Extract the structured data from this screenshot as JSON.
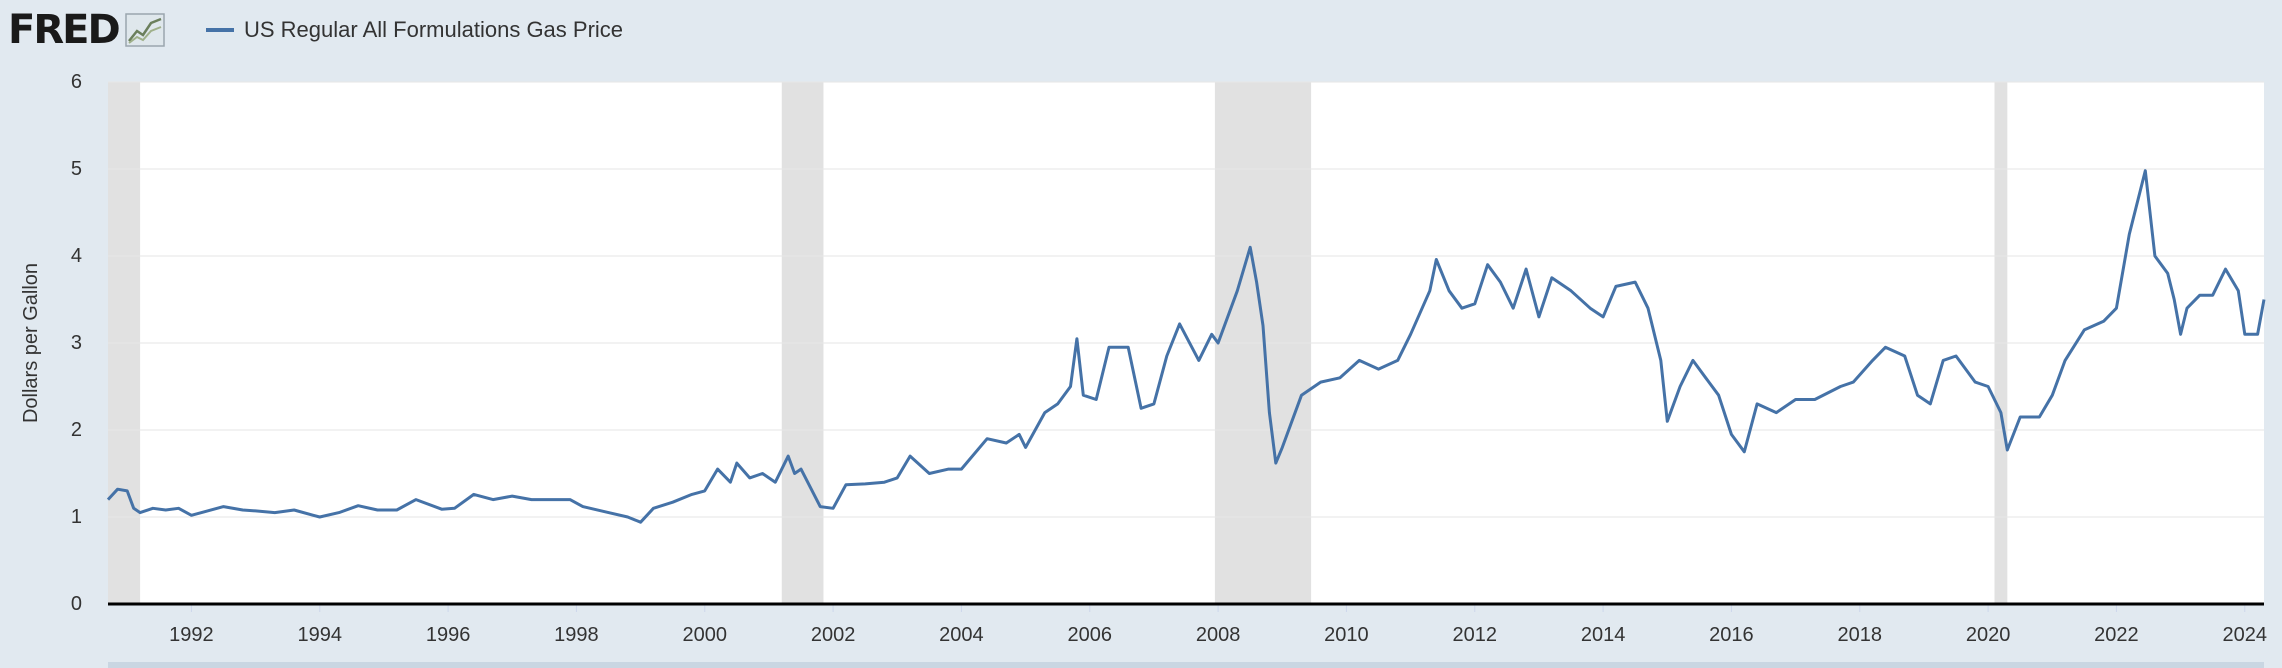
{
  "header": {
    "logo": "FRED",
    "logo_icon": "chart-line-icon",
    "legend_label": "US Regular All Formulations Gas Price",
    "series_color": "#4572a7"
  },
  "chart_data": {
    "type": "line",
    "ylabel": "Dollars per Gallon",
    "xlabel": "",
    "ylim": [
      0,
      6
    ],
    "yticks": [
      0,
      1,
      2,
      3,
      4,
      5,
      6
    ],
    "xlim": [
      1990.7,
      2024.3
    ],
    "xticks": [
      "1992",
      "1994",
      "1996",
      "1998",
      "2000",
      "2002",
      "2004",
      "2006",
      "2008",
      "2010",
      "2012",
      "2014",
      "2016",
      "2018",
      "2020",
      "2022",
      "2024"
    ],
    "recessions": [
      {
        "start": 1990.7,
        "end": 1991.2
      },
      {
        "start": 2001.2,
        "end": 2001.85
      },
      {
        "start": 2007.95,
        "end": 2009.45
      },
      {
        "start": 2020.1,
        "end": 2020.3
      }
    ],
    "recession_color": "#e1e1e1",
    "series": [
      {
        "name": "US Regular All Formulations Gas Price",
        "x": [
          1990.7,
          1990.85,
          1991.0,
          1991.1,
          1991.2,
          1991.4,
          1991.6,
          1991.8,
          1992.0,
          1992.2,
          1992.5,
          1992.8,
          1993.0,
          1993.3,
          1993.6,
          1993.9,
          1994.0,
          1994.3,
          1994.6,
          1994.9,
          1995.2,
          1995.5,
          1995.9,
          1996.1,
          1996.4,
          1996.7,
          1997.0,
          1997.3,
          1997.6,
          1997.9,
          1998.1,
          1998.5,
          1998.8,
          1999.0,
          1999.2,
          1999.5,
          1999.8,
          2000.0,
          2000.2,
          2000.4,
          2000.5,
          2000.7,
          2000.9,
          2001.1,
          2001.3,
          2001.4,
          2001.5,
          2001.8,
          2002.0,
          2002.2,
          2002.5,
          2002.8,
          2003.0,
          2003.2,
          2003.5,
          2003.8,
          2004.0,
          2004.4,
          2004.7,
          2004.9,
          2005.0,
          2005.3,
          2005.5,
          2005.7,
          2005.8,
          2005.9,
          2006.1,
          2006.3,
          2006.6,
          2006.8,
          2007.0,
          2007.2,
          2007.4,
          2007.7,
          2007.9,
          2008.0,
          2008.3,
          2008.5,
          2008.6,
          2008.7,
          2008.8,
          2008.9,
          2009.0,
          2009.3,
          2009.6,
          2009.9,
          2010.2,
          2010.5,
          2010.8,
          2011.0,
          2011.3,
          2011.4,
          2011.6,
          2011.8,
          2012.0,
          2012.2,
          2012.4,
          2012.6,
          2012.8,
          2013.0,
          2013.2,
          2013.5,
          2013.8,
          2014.0,
          2014.2,
          2014.5,
          2014.7,
          2014.9,
          2015.0,
          2015.2,
          2015.4,
          2015.6,
          2015.8,
          2016.0,
          2016.2,
          2016.4,
          2016.7,
          2017.0,
          2017.3,
          2017.7,
          2017.9,
          2018.2,
          2018.4,
          2018.7,
          2018.9,
          2019.1,
          2019.3,
          2019.5,
          2019.8,
          2020.0,
          2020.2,
          2020.3,
          2020.5,
          2020.8,
          2021.0,
          2021.2,
          2021.5,
          2021.8,
          2022.0,
          2022.2,
          2022.45,
          2022.6,
          2022.8,
          2022.9,
          2023.0,
          2023.1,
          2023.3,
          2023.5,
          2023.7,
          2023.9,
          2024.0,
          2024.2,
          2024.3
        ],
        "values": [
          1.2,
          1.32,
          1.3,
          1.1,
          1.05,
          1.1,
          1.08,
          1.1,
          1.02,
          1.06,
          1.12,
          1.08,
          1.07,
          1.05,
          1.08,
          1.02,
          1.0,
          1.05,
          1.13,
          1.08,
          1.08,
          1.2,
          1.09,
          1.1,
          1.26,
          1.2,
          1.24,
          1.2,
          1.2,
          1.2,
          1.12,
          1.05,
          1.0,
          0.94,
          1.1,
          1.17,
          1.26,
          1.3,
          1.55,
          1.4,
          1.62,
          1.45,
          1.5,
          1.4,
          1.7,
          1.5,
          1.55,
          1.12,
          1.1,
          1.37,
          1.38,
          1.4,
          1.45,
          1.7,
          1.5,
          1.55,
          1.55,
          1.9,
          1.85,
          1.95,
          1.8,
          2.2,
          2.3,
          2.5,
          3.05,
          2.4,
          2.35,
          2.95,
          2.95,
          2.25,
          2.3,
          2.85,
          3.22,
          2.8,
          3.1,
          3.0,
          3.6,
          4.1,
          3.7,
          3.2,
          2.2,
          1.62,
          1.8,
          2.4,
          2.55,
          2.6,
          2.8,
          2.7,
          2.8,
          3.1,
          3.6,
          3.96,
          3.6,
          3.4,
          3.45,
          3.9,
          3.7,
          3.4,
          3.85,
          3.3,
          3.75,
          3.6,
          3.4,
          3.3,
          3.65,
          3.7,
          3.4,
          2.8,
          2.1,
          2.5,
          2.8,
          2.6,
          2.4,
          1.95,
          1.75,
          2.3,
          2.2,
          2.35,
          2.35,
          2.5,
          2.55,
          2.8,
          2.95,
          2.85,
          2.4,
          2.3,
          2.8,
          2.85,
          2.55,
          2.5,
          2.2,
          1.77,
          2.15,
          2.15,
          2.4,
          2.8,
          3.15,
          3.25,
          3.4,
          4.25,
          4.98,
          4.0,
          3.8,
          3.5,
          3.1,
          3.4,
          3.55,
          3.55,
          3.85,
          3.6,
          3.1,
          3.1,
          3.5
        ]
      }
    ]
  }
}
